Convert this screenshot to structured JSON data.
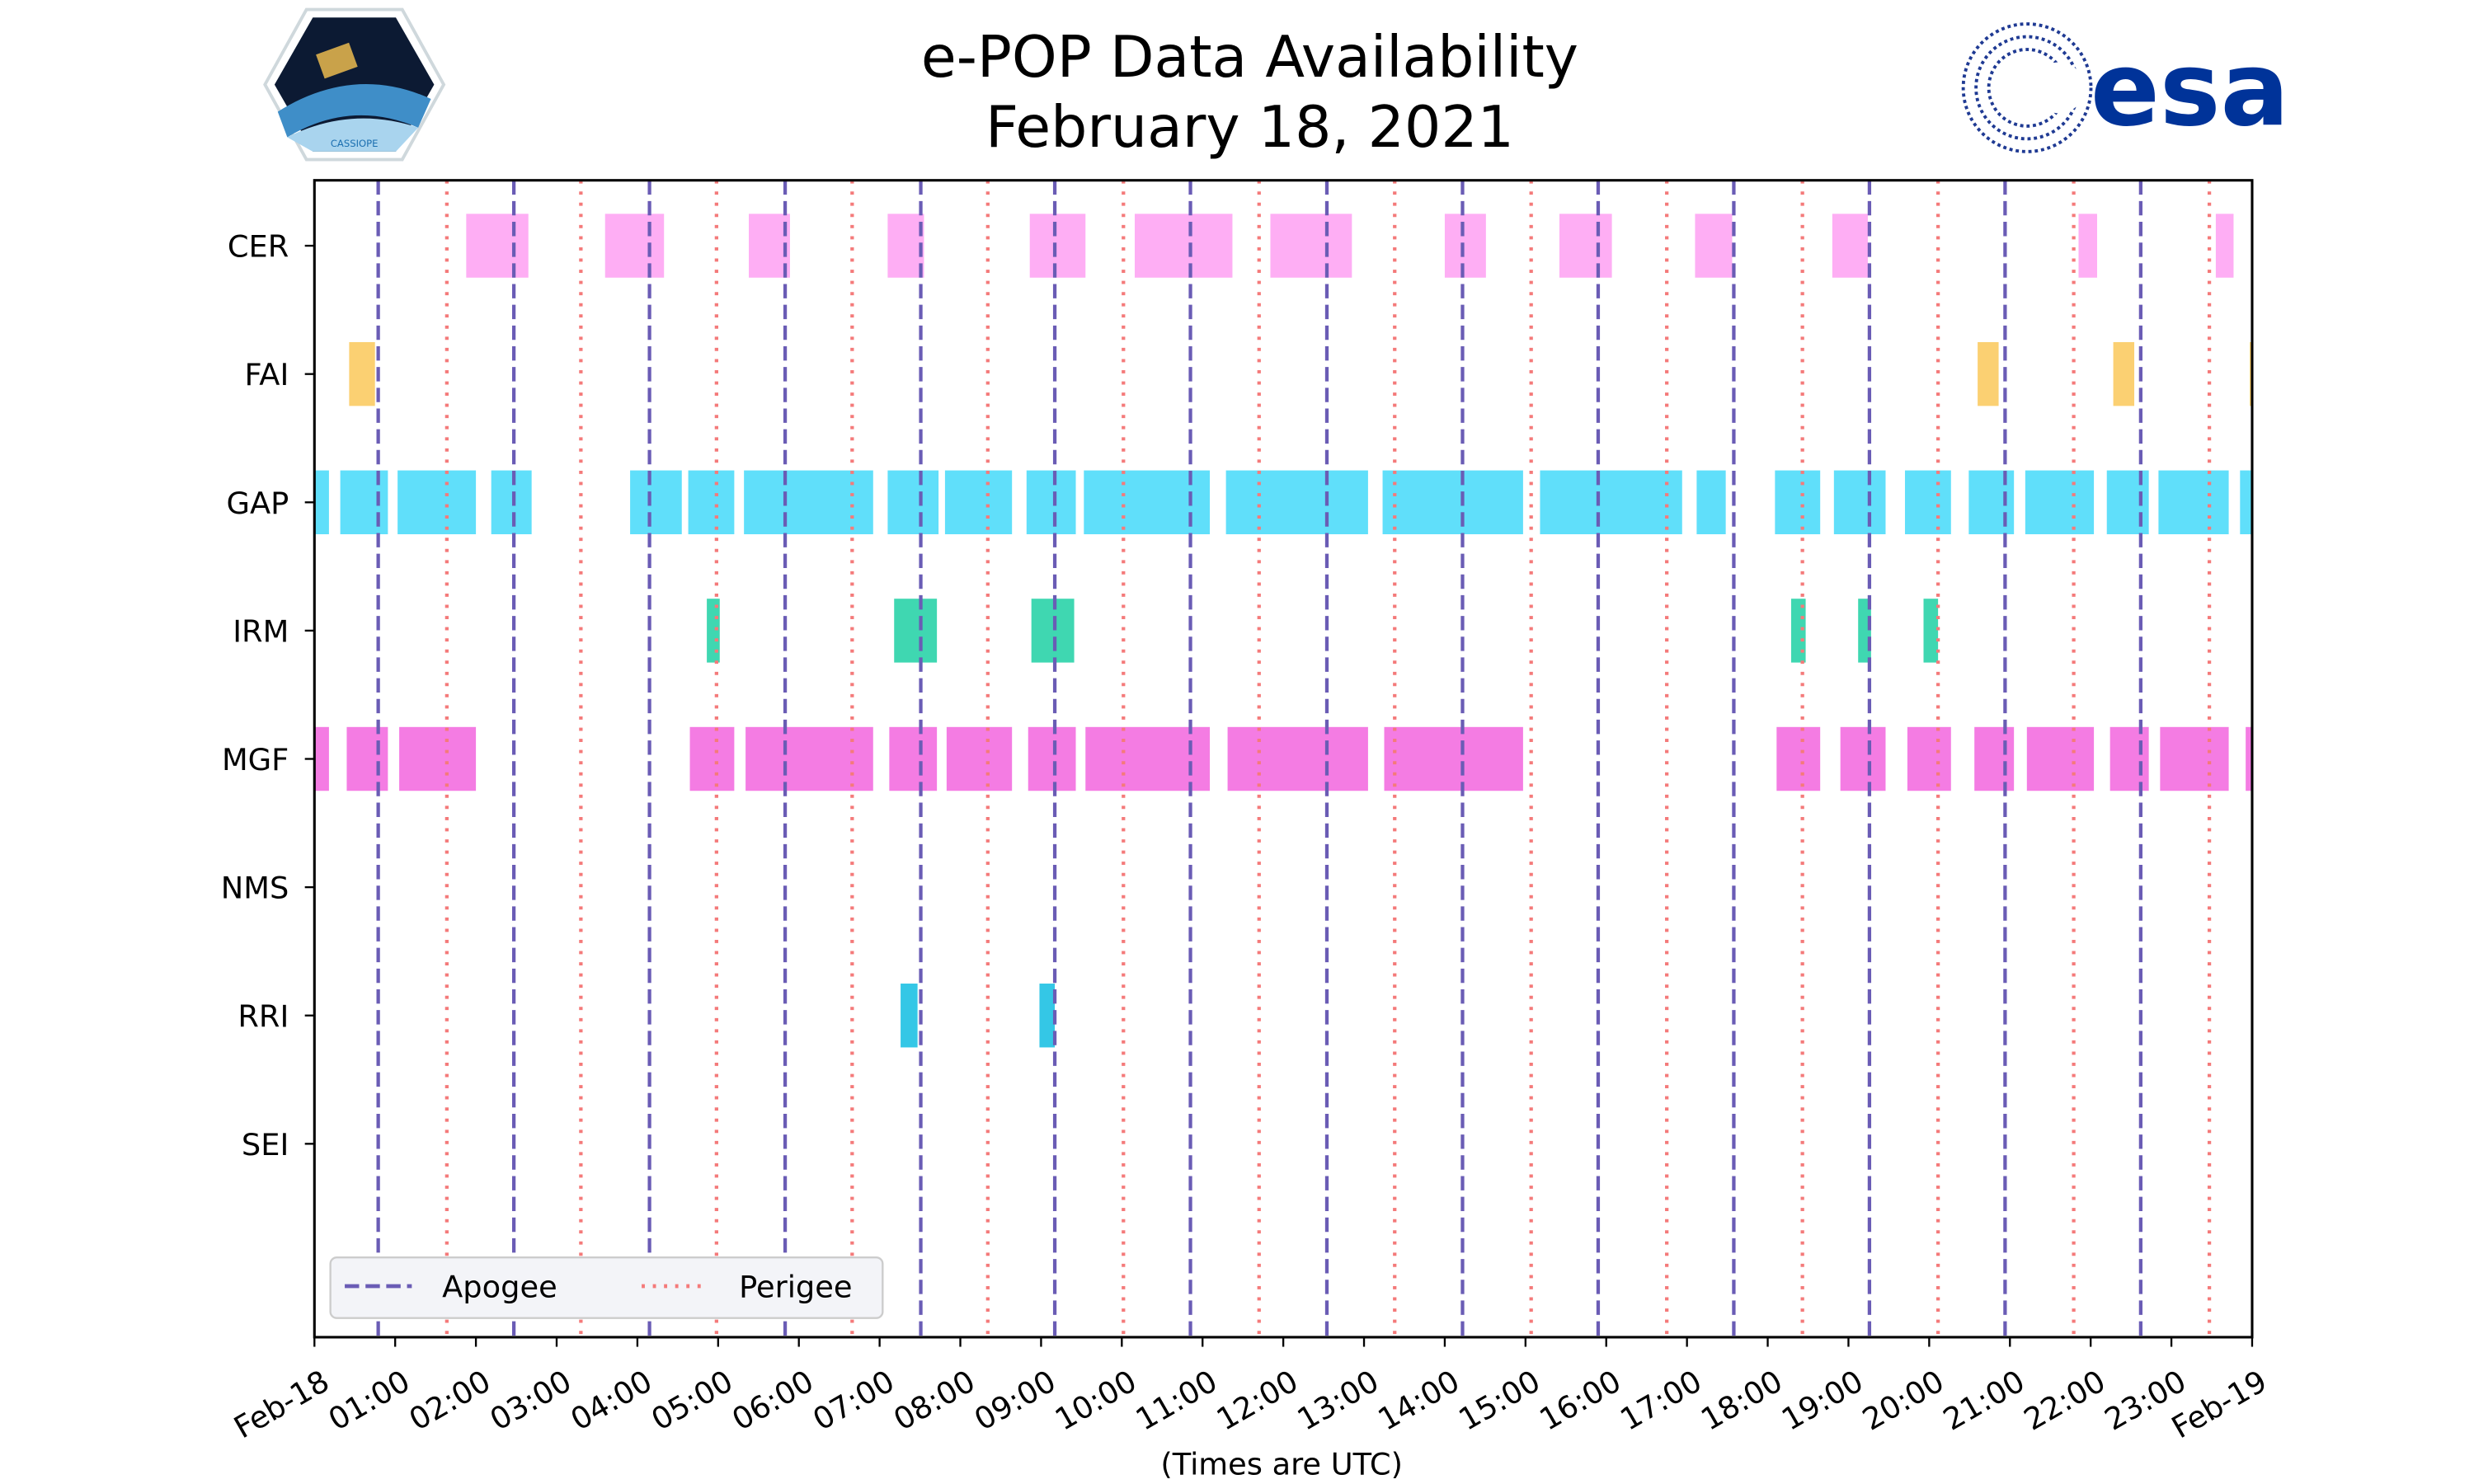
{
  "header": {
    "title_line1": "e-POP Data Availability",
    "title_line2": "February 18, 2021",
    "left_logo_text": "CASSIOPE",
    "right_logo_text": "esa"
  },
  "chart_data": {
    "type": "timeline",
    "title": "e-POP Data Availability February 18, 2021",
    "xlabel": "(Times are UTC)",
    "ylabel": "",
    "xlim_hours": [
      0,
      24
    ],
    "x_tick_labels": [
      "Feb-18",
      "01:00",
      "02:00",
      "03:00",
      "04:00",
      "05:00",
      "06:00",
      "07:00",
      "08:00",
      "09:00",
      "10:00",
      "11:00",
      "12:00",
      "13:00",
      "14:00",
      "15:00",
      "16:00",
      "17:00",
      "18:00",
      "19:00",
      "20:00",
      "21:00",
      "22:00",
      "23:00",
      "Feb-19"
    ],
    "instruments": [
      "CER",
      "FAI",
      "GAP",
      "IRM",
      "MGF",
      "NMS",
      "RRI",
      "SEI"
    ],
    "colors": {
      "CER": "#fea5f3",
      "FAI": "#fbcb63",
      "GAP": "#4fdbf9",
      "IRM": "#2ad3a8",
      "MGF": "#f36ee0",
      "NMS": "#888888",
      "RRI": "#1ec1e3",
      "apogee": "#6a5cb5",
      "perigee": "#f47a7a"
    },
    "intervals_hours": {
      "CER": [
        [
          1.88,
          2.65
        ],
        [
          3.6,
          4.33
        ],
        [
          5.38,
          5.89
        ],
        [
          7.1,
          7.55
        ],
        [
          8.86,
          9.55
        ],
        [
          10.16,
          11.37
        ],
        [
          11.84,
          12.85
        ],
        [
          14.0,
          14.51
        ],
        [
          15.42,
          16.07
        ],
        [
          17.1,
          17.56
        ],
        [
          18.8,
          19.24
        ],
        [
          21.85,
          22.08
        ],
        [
          23.55,
          23.77
        ]
      ],
      "FAI": [
        [
          0.43,
          0.75
        ],
        [
          20.6,
          20.86
        ],
        [
          22.28,
          22.54
        ],
        [
          23.97,
          24.0
        ]
      ],
      "GAP": [
        [
          0,
          0.18
        ],
        [
          0.32,
          0.91
        ],
        [
          1.03,
          2.0
        ],
        [
          2.19,
          2.69
        ],
        [
          3.91,
          4.55
        ],
        [
          4.63,
          5.2
        ],
        [
          5.32,
          6.92
        ],
        [
          7.1,
          7.73
        ],
        [
          7.81,
          8.64
        ],
        [
          8.82,
          9.43
        ],
        [
          9.53,
          11.09
        ],
        [
          11.29,
          13.05
        ],
        [
          13.23,
          14.97
        ],
        [
          15.18,
          16.94
        ],
        [
          17.12,
          17.48
        ],
        [
          18.09,
          18.65
        ],
        [
          18.82,
          19.46
        ],
        [
          19.7,
          20.27
        ],
        [
          20.49,
          21.05
        ],
        [
          21.19,
          22.04
        ],
        [
          22.2,
          22.72
        ],
        [
          22.84,
          23.71
        ],
        [
          23.85,
          24.0
        ]
      ],
      "IRM": [
        [
          4.86,
          5.02
        ],
        [
          7.18,
          7.71
        ],
        [
          8.88,
          9.41
        ],
        [
          18.29,
          18.47
        ],
        [
          19.12,
          19.28
        ],
        [
          19.93,
          20.11
        ]
      ],
      "MGF": [
        [
          0,
          0.18
        ],
        [
          0.4,
          0.91
        ],
        [
          1.05,
          2.0
        ],
        [
          4.65,
          5.2
        ],
        [
          5.34,
          6.92
        ],
        [
          7.12,
          7.71
        ],
        [
          7.83,
          8.64
        ],
        [
          8.84,
          9.43
        ],
        [
          9.55,
          11.09
        ],
        [
          11.31,
          13.05
        ],
        [
          13.25,
          14.97
        ],
        [
          18.11,
          18.65
        ],
        [
          18.9,
          19.46
        ],
        [
          19.73,
          20.27
        ],
        [
          20.56,
          21.05
        ],
        [
          21.21,
          22.04
        ],
        [
          22.24,
          22.72
        ],
        [
          22.86,
          23.71
        ],
        [
          23.92,
          24.0
        ]
      ],
      "NMS": [],
      "RRI": [
        [
          7.26,
          7.47
        ],
        [
          8.98,
          9.17
        ]
      ],
      "SEI": []
    },
    "apogee_hours": [
      0.79,
      2.47,
      4.15,
      5.83,
      7.51,
      9.17,
      10.85,
      12.54,
      14.22,
      15.9,
      17.58,
      19.26,
      20.94,
      22.62
    ],
    "perigee_hours": [
      1.64,
      3.3,
      4.98,
      6.66,
      8.34,
      10.02,
      11.7,
      13.38,
      15.07,
      16.75,
      18.43,
      20.11,
      21.79,
      23.47
    ],
    "legend": {
      "placement": "lower-left",
      "entries": [
        "Apogee",
        "Perigee"
      ]
    },
    "grid": false
  }
}
